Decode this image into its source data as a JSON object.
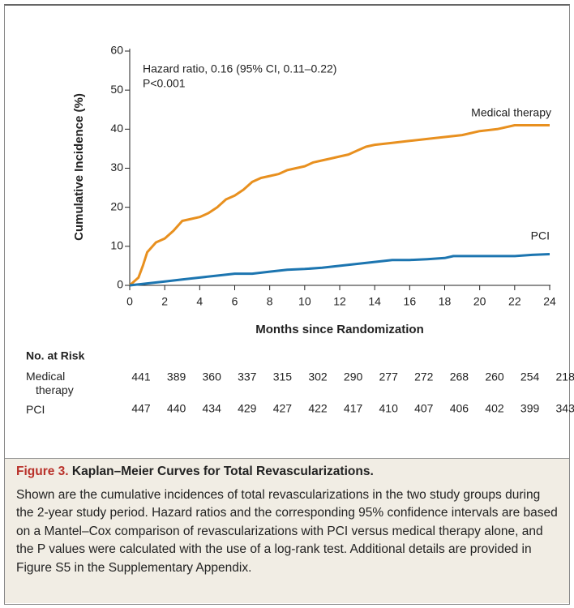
{
  "chart_data": {
    "type": "line",
    "annotations": [
      "Hazard ratio, 0.16 (95% CI, 0.11–0.22)",
      "P<0.001"
    ],
    "xlabel": "Months since Randomization",
    "ylabel": "Cumulative Incidence (%)",
    "xlim": [
      0,
      24
    ],
    "xticks": [
      0,
      2,
      4,
      6,
      8,
      10,
      12,
      14,
      16,
      18,
      20,
      22,
      24
    ],
    "ylim": [
      0,
      60
    ],
    "yticks": [
      0,
      10,
      20,
      30,
      40,
      50,
      60
    ],
    "series": [
      {
        "name": "Medical therapy",
        "color": "#e8901f",
        "x": [
          0,
          0.5,
          0.75,
          1,
          1.5,
          2,
          2.5,
          3,
          3.5,
          4,
          4.5,
          5,
          5.5,
          6,
          6.5,
          7,
          7.5,
          8,
          8.5,
          9,
          9.5,
          10,
          10.5,
          11,
          11.5,
          12,
          12.5,
          13,
          13.5,
          14,
          15,
          16,
          17,
          18,
          19,
          20,
          21,
          22,
          23,
          24
        ],
        "values": [
          0,
          2,
          5,
          8.5,
          11,
          12,
          14,
          16.5,
          17,
          17.5,
          18.5,
          20,
          22,
          23,
          24.5,
          26.5,
          27.5,
          28,
          28.5,
          29.5,
          30,
          30.5,
          31.5,
          32,
          32.5,
          33,
          33.5,
          34.5,
          35.5,
          36,
          36.5,
          37,
          37.5,
          38,
          38.5,
          39.5,
          40,
          41,
          41,
          41
        ]
      },
      {
        "name": "PCI",
        "color": "#1c75b0",
        "x": [
          0,
          1,
          2,
          3,
          4,
          5,
          6,
          7,
          8,
          9,
          10,
          11,
          12,
          13,
          14,
          15,
          16,
          17,
          18,
          18.5,
          20,
          22,
          23,
          24
        ],
        "values": [
          0,
          0.5,
          1,
          1.5,
          2,
          2.5,
          3,
          3,
          3.5,
          4,
          4.2,
          4.5,
          5,
          5.5,
          6,
          6.5,
          6.5,
          6.7,
          7,
          7.5,
          7.5,
          7.5,
          7.8,
          8
        ]
      }
    ]
  },
  "risk_table": {
    "title": "No. at Risk",
    "rows": [
      {
        "label": "Medical therapy",
        "values": [
          441,
          389,
          360,
          337,
          315,
          302,
          290,
          277,
          272,
          268,
          260,
          254,
          218
        ]
      },
      {
        "label": "PCI",
        "values": [
          447,
          440,
          434,
          429,
          427,
          422,
          417,
          410,
          407,
          406,
          402,
          399,
          343
        ]
      }
    ]
  },
  "caption": {
    "label": "Figure 3.",
    "title": "Kaplan–Meier Curves for Total Revascularizations.",
    "text": "Shown are the cumulative incidences of total revascularizations in the two study groups during the 2-year study period. Hazard ratios and the corresponding 95% confidence intervals are based on a Mantel–Cox comparison of revascularizations with PCI versus medical therapy alone, and the P values were calculated with the use of a log-rank test. Additional details are provided in Figure S5 in the Supplementary Appendix."
  }
}
